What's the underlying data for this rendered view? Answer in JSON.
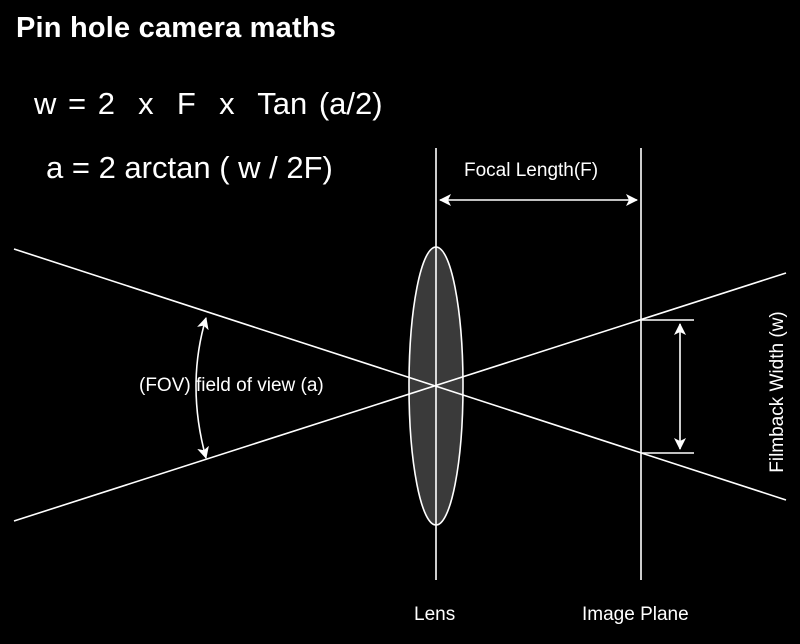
{
  "title": "Pin hole camera maths",
  "formulas": {
    "width": "w = 2  x  F  x  Tan (a/2)",
    "angle": "a = 2 arctan ( w / 2F)"
  },
  "labels": {
    "focal_length": "Focal Length(F)",
    "fov": "(FOV) field of view (a)",
    "lens": "Lens",
    "image_plane": "Image Plane",
    "filmback_width": "Filmback Width (w)"
  },
  "colors": {
    "background": "#000000",
    "stroke": "#ffffff",
    "lens_fill": "#3a3a3a"
  }
}
